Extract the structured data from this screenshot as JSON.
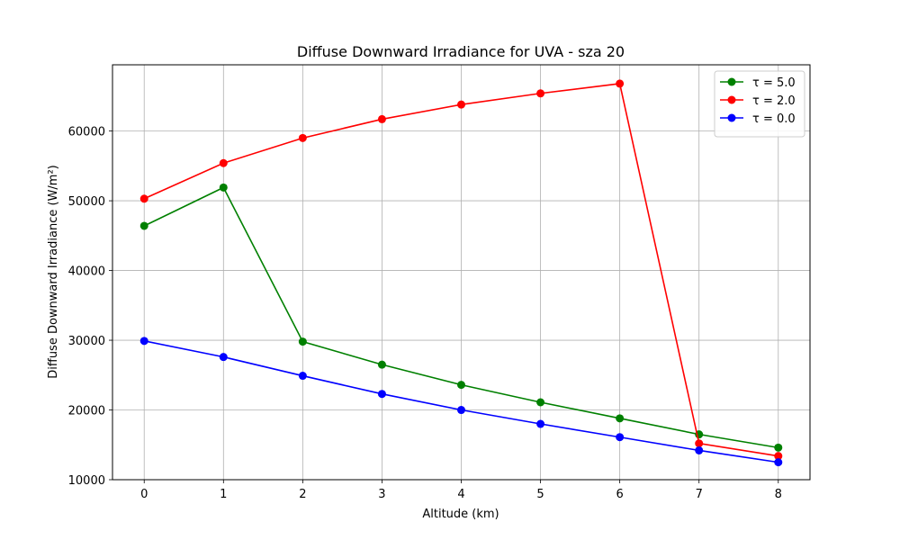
{
  "chart_data": {
    "type": "line",
    "title": "Diffuse Downward Irradiance for UVA - sza 20",
    "xlabel": "Altitude (km)",
    "ylabel": "Diffuse Downward Irradiance (W/m²)",
    "x": [
      0,
      1,
      2,
      3,
      4,
      5,
      6,
      7,
      8
    ],
    "xlim": [
      -0.4,
      8.4
    ],
    "ylim": [
      10000,
      69500
    ],
    "xticks": [
      "0",
      "1",
      "2",
      "3",
      "4",
      "5",
      "6",
      "7",
      "8"
    ],
    "yticks": [
      "10000",
      "20000",
      "30000",
      "40000",
      "50000",
      "60000"
    ],
    "grid": true,
    "legend_position": "top-right",
    "series": [
      {
        "name": "τ = 5.0",
        "color": "#008000",
        "values": [
          46400,
          51900,
          29800,
          26500,
          23600,
          21100,
          18800,
          16500,
          14600
        ]
      },
      {
        "name": "τ = 2.0",
        "color": "#ff0000",
        "values": [
          50300,
          55400,
          59000,
          61700,
          63800,
          65400,
          66800,
          15200,
          13400
        ]
      },
      {
        "name": "τ = 0.0",
        "color": "#0000ff",
        "values": [
          29900,
          27600,
          24900,
          22300,
          20000,
          18000,
          16100,
          14200,
          12500
        ]
      }
    ]
  }
}
